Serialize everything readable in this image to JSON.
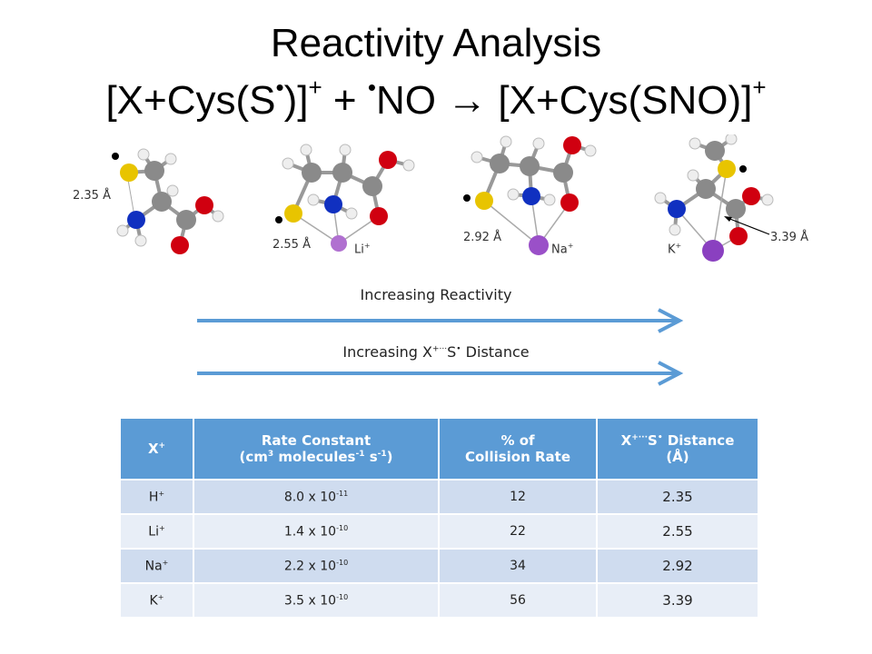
{
  "title": {
    "line1": "Reactivity Analysis",
    "line2_a": "[X+Cys(S",
    "line2_b": ")]",
    "line2_c": " + ",
    "line2_d": "NO ",
    "line2_e": " [X+Cys(SNO)]",
    "dot": "•",
    "plus": "+",
    "arrow": "→"
  },
  "molecules": [
    {
      "distance": "2.35 Å",
      "ion": ""
    },
    {
      "distance": "2.55 Å",
      "ion": "Li",
      "charge": "+"
    },
    {
      "distance": "2.92 Å",
      "ion": "Na",
      "charge": "+"
    },
    {
      "distance": "3.39 Å",
      "ion": "K",
      "charge": "+"
    }
  ],
  "arrows": {
    "reactivity": "Increasing Reactivity",
    "distance_a": "Increasing X",
    "distance_sup": "+···",
    "distance_b": "S",
    "distance_dot": "•",
    "distance_c": " Distance",
    "color": "#5b9bd5"
  },
  "table": {
    "headers": {
      "col1_a": "X",
      "col1_sup": "+",
      "col2_line1": "Rate Constant",
      "col2_line2_a": "(cm",
      "col2_sup1": "3",
      "col2_line2_b": " molecules",
      "col2_sup2": "-1",
      "col2_line2_c": " s",
      "col2_sup3": "-1",
      "col2_line2_d": ")",
      "col3_line1": "% of",
      "col3_line2": "Collision Rate",
      "col4_a": "X",
      "col4_sup": "+···",
      "col4_b": "S",
      "col4_dot": "•",
      "col4_c": " Distance",
      "col4_line2": "(Å)"
    },
    "rows": [
      {
        "ion": "H",
        "charge": "+",
        "rate_base": "8.0 x 10",
        "rate_exp": "-11",
        "percent": "12",
        "distance": "2.35"
      },
      {
        "ion": "Li",
        "charge": "+",
        "rate_base": "1.4 x 10",
        "rate_exp": "-10",
        "percent": "22",
        "distance": "2.55"
      },
      {
        "ion": "Na",
        "charge": "+",
        "rate_base": "2.2 x 10",
        "rate_exp": "-10",
        "percent": "34",
        "distance": "2.92"
      },
      {
        "ion": "K",
        "charge": "+",
        "rate_base": "3.5 x 10",
        "rate_exp": "-10",
        "percent": "56",
        "distance": "3.39"
      }
    ]
  }
}
